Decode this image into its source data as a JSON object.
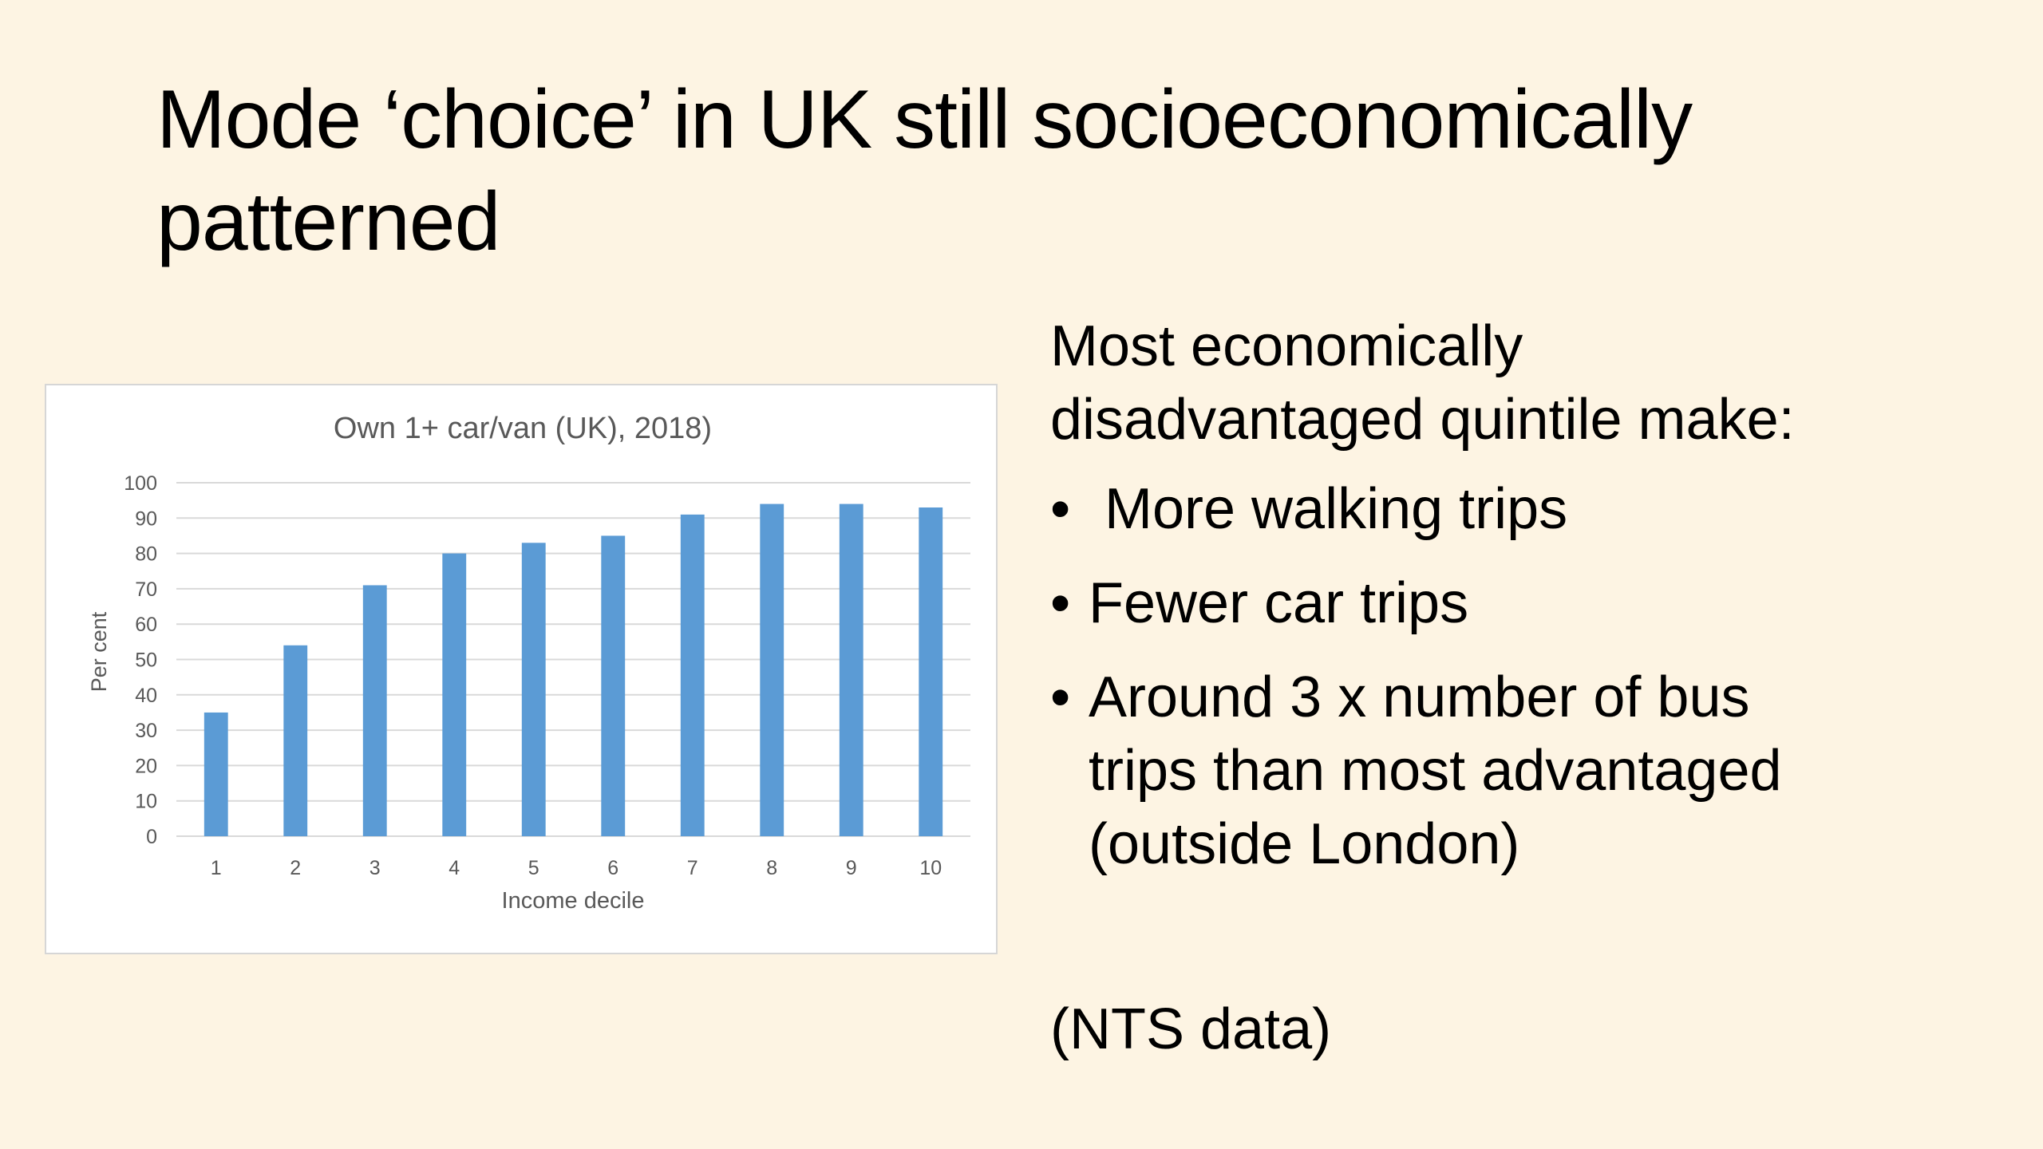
{
  "slide": {
    "title_line1": "Mode ‘choice’ in UK still socioeconomically",
    "title_line2": "patterned",
    "intro_line1": "Most economically",
    "intro_line2": "disadvantaged quintile make:",
    "bullets": [
      {
        "symbol": "•",
        "line1": "More walking trips"
      },
      {
        "symbol": "•",
        "line1": "Fewer car trips"
      },
      {
        "symbol": "•",
        "line1": "Around 3 x number of bus",
        "line2": "trips than most advantaged",
        "line3": "(outside London)"
      }
    ],
    "source_note": "(NTS data)"
  },
  "colors": {
    "background": "#fdf4e3",
    "bar": "#5b9bd5",
    "gridline": "#d9d9d9",
    "axis_text": "#595959"
  },
  "chart_data": {
    "type": "bar",
    "title": "Own 1+ car/van (UK), 2018)",
    "xlabel": "Income decile",
    "ylabel": "Per cent",
    "categories": [
      "1",
      "2",
      "3",
      "4",
      "5",
      "6",
      "7",
      "8",
      "9",
      "10"
    ],
    "values": [
      35,
      54,
      71,
      80,
      83,
      85,
      91,
      94,
      94,
      93
    ],
    "ylim": [
      0,
      100
    ],
    "yticks": [
      "0",
      "10",
      "20",
      "30",
      "40",
      "50",
      "60",
      "70",
      "80",
      "90",
      "100"
    ],
    "grid": true,
    "legend": "none"
  }
}
